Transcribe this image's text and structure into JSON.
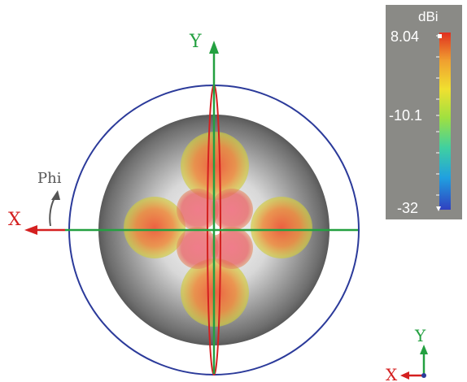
{
  "axes": {
    "y_label": "Y",
    "x_label": "X",
    "phi_label": "Phi"
  },
  "colorbar": {
    "unit": "dBi",
    "max_label": "8.04",
    "mid_label": "-10.1",
    "min_label": "-32",
    "stops": [
      "#3040c0",
      "#20a0e0",
      "#40d0a0",
      "#a0e040",
      "#f0e030",
      "#f0a030",
      "#e03020"
    ]
  },
  "triad": {
    "y_label": "Y",
    "x_label": "X"
  },
  "colors": {
    "ring": "#2b3a9a",
    "x_axis_arrow": "#d42020",
    "y_axis_arrow": "#23a040",
    "horizontal_line": "#23a040",
    "vertical_ellipse": "#d42020",
    "sphere_edge": "#3a3a3a",
    "colorbar_bg": "#8a8a86"
  }
}
